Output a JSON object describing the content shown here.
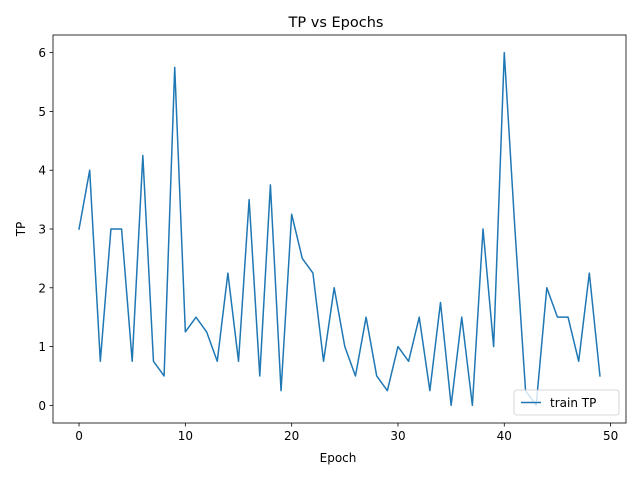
{
  "chart_data": {
    "type": "line",
    "title": "TP vs Epochs",
    "xlabel": "Epoch",
    "ylabel": "TP",
    "xlim": [
      -2.45,
      51.45
    ],
    "ylim": [
      -0.3,
      6.3
    ],
    "xticks": [
      0,
      10,
      20,
      30,
      40,
      50
    ],
    "yticks": [
      0,
      1,
      2,
      3,
      4,
      5,
      6
    ],
    "grid": false,
    "legend": {
      "position": "lower-right"
    },
    "series": [
      {
        "name": "train TP",
        "color": "#1f77b4",
        "x": [
          0,
          1,
          2,
          3,
          4,
          5,
          6,
          7,
          8,
          9,
          10,
          11,
          12,
          13,
          14,
          15,
          16,
          17,
          18,
          19,
          20,
          21,
          22,
          23,
          24,
          25,
          26,
          27,
          28,
          29,
          30,
          31,
          32,
          33,
          34,
          35,
          36,
          37,
          38,
          39,
          40,
          41,
          42,
          43,
          44,
          45,
          46,
          47,
          48,
          49
        ],
        "y": [
          3,
          4,
          0.75,
          3,
          3,
          0.75,
          4.25,
          0.75,
          0.5,
          5.75,
          1.25,
          1.5,
          1.25,
          0.75,
          2.25,
          0.75,
          3.5,
          0.5,
          3.75,
          0.25,
          3.25,
          2.5,
          2.25,
          0.75,
          2,
          1,
          0.5,
          1.5,
          0.5,
          0.25,
          1,
          0.75,
          1.5,
          0.25,
          1.75,
          0,
          1.5,
          0,
          3,
          1,
          6,
          3,
          0.25,
          0,
          2,
          1.5,
          1.5,
          0.75,
          2.25,
          0.5
        ]
      }
    ]
  }
}
